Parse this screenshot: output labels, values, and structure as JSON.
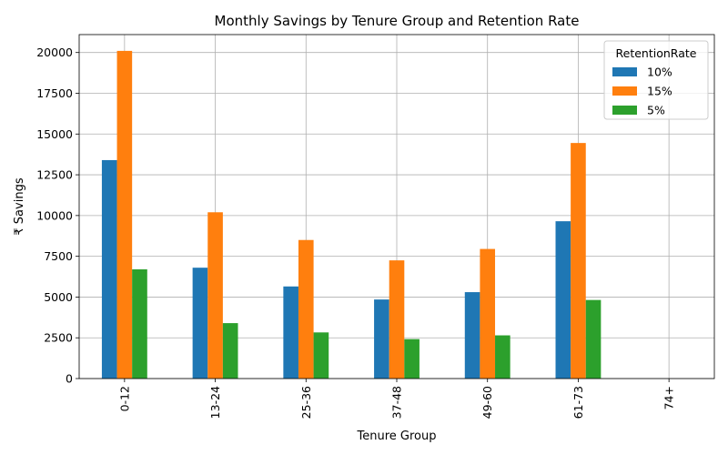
{
  "chart_data": {
    "type": "bar",
    "title": "Monthly Savings by Tenure Group and Retention Rate",
    "xlabel": "Tenure Group",
    "ylabel": "₹ Savings",
    "categories": [
      "0-12",
      "13-24",
      "25-36",
      "37-48",
      "49-60",
      "61-73",
      "74+"
    ],
    "series": [
      {
        "name": "10%",
        "color": "#1f77b4",
        "values": [
          13400,
          6800,
          5650,
          4850,
          5300,
          9650,
          0
        ]
      },
      {
        "name": "15%",
        "color": "#ff7f0e",
        "values": [
          20100,
          10200,
          8500,
          7250,
          7950,
          14450,
          0
        ]
      },
      {
        "name": "5%",
        "color": "#2ca02c",
        "values": [
          6700,
          3400,
          2830,
          2420,
          2650,
          4820,
          0
        ]
      }
    ],
    "ylim": [
      0,
      21100
    ],
    "yticks": [
      0,
      2500,
      5000,
      7500,
      10000,
      12500,
      15000,
      17500,
      20000
    ],
    "grid": true,
    "legend": {
      "title": "RetentionRate",
      "placement": "top-right"
    }
  }
}
